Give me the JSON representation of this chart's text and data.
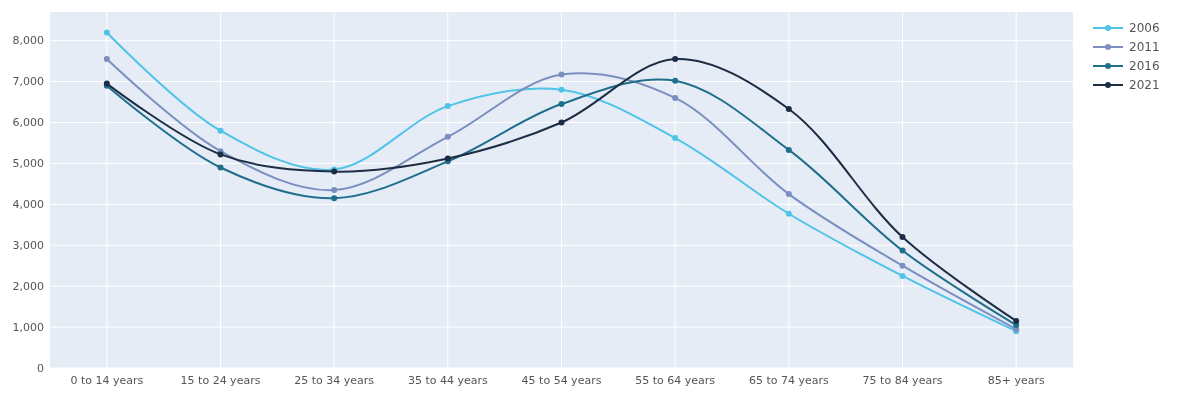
{
  "chart_data": {
    "type": "line",
    "categories": [
      "0 to 14 years",
      "15 to 24 years",
      "25 to 34 years",
      "35 to 44 years",
      "45 to 54 years",
      "55 to 64 years",
      "65 to 74 years",
      "75 to 84 years",
      "85+ years"
    ],
    "series": [
      {
        "name": "2006",
        "color": "#4fc3e8",
        "values": [
          8200,
          5800,
          4850,
          6400,
          6800,
          5620,
          3770,
          2250,
          900
        ]
      },
      {
        "name": "2011",
        "color": "#7a8fc0",
        "values": [
          7550,
          5300,
          4350,
          5650,
          7170,
          6600,
          4250,
          2500,
          950
        ]
      },
      {
        "name": "2016",
        "color": "#1f6e8c",
        "values": [
          6900,
          4900,
          4150,
          5050,
          6450,
          7020,
          5330,
          2870,
          1050
        ]
      },
      {
        "name": "2021",
        "color": "#1d2d44",
        "values": [
          6950,
          5220,
          4800,
          5120,
          6000,
          7550,
          6330,
          3200,
          1150
        ]
      }
    ],
    "ylim": [
      0,
      8700
    ],
    "yticks": [
      0,
      {
        "value": 1000,
        "label": "1,000"
      },
      {
        "value": 2000,
        "label": "2,000"
      },
      {
        "value": 3000,
        "label": "3,000"
      },
      {
        "value": 4000,
        "label": "4,000"
      },
      {
        "value": 5000,
        "label": "5,000"
      },
      {
        "value": 6000,
        "label": "6,000"
      },
      {
        "value": 7000,
        "label": "7,000"
      },
      {
        "value": 8000,
        "label": "8,000"
      }
    ],
    "grid": true,
    "legend": "top right",
    "marker": "circle",
    "line_style": "solid"
  }
}
